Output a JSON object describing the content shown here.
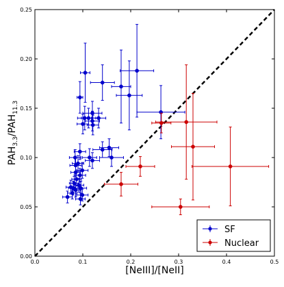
{
  "chart_data": {
    "type": "scatter",
    "xlabel": "[NeIII]/[NeII]",
    "ylabel_main": "PAH",
    "ylabel_sub1": "3.3",
    "ylabel_sep": "/PAH",
    "ylabel_sub2": "11.3",
    "xlim": [
      0,
      0.5
    ],
    "ylim": [
      0,
      0.25
    ],
    "xticks": [
      0.0,
      0.1,
      0.2,
      0.3,
      0.4,
      0.5
    ],
    "xtick_labels": [
      "0.0",
      "0.1",
      "0.2",
      "0.3",
      "0.4",
      "0.5"
    ],
    "yticks": [
      0.0,
      0.05,
      0.1,
      0.15,
      0.2,
      0.25
    ],
    "ytick_labels": [
      "0.00",
      "0.05",
      "0.10",
      "0.15",
      "0.20",
      "0.25"
    ],
    "reference_line": {
      "style": "dashed",
      "color": "#000000",
      "points": [
        [
          0,
          0
        ],
        [
          0.5,
          0.25
        ]
      ]
    },
    "legend": {
      "placement": "bottom-right"
    },
    "series": [
      {
        "name": "SF",
        "color": "#0000cc",
        "points": [
          {
            "x": 0.105,
            "y": 0.186,
            "xerr": 0.01,
            "yerr": 0.03
          },
          {
            "x": 0.213,
            "y": 0.188,
            "xerr": 0.035,
            "yerr": 0.047
          },
          {
            "x": 0.18,
            "y": 0.172,
            "xerr": 0.02,
            "yerr": 0.037
          },
          {
            "x": 0.197,
            "y": 0.163,
            "xerr": 0.027,
            "yerr": 0.035
          },
          {
            "x": 0.141,
            "y": 0.176,
            "xerr": 0.025,
            "yerr": 0.018
          },
          {
            "x": 0.094,
            "y": 0.161,
            "xerr": 0.006,
            "yerr": 0.016
          },
          {
            "x": 0.263,
            "y": 0.146,
            "xerr": 0.05,
            "yerr": 0.027
          },
          {
            "x": 0.12,
            "y": 0.145,
            "xerr": 0.02,
            "yerr": 0.012
          },
          {
            "x": 0.104,
            "y": 0.14,
            "xerr": 0.015,
            "yerr": 0.012
          },
          {
            "x": 0.112,
            "y": 0.14,
            "xerr": 0.015,
            "yerr": 0.01
          },
          {
            "x": 0.133,
            "y": 0.14,
            "xerr": 0.015,
            "yerr": 0.01
          },
          {
            "x": 0.12,
            "y": 0.137,
            "xerr": 0.015,
            "yerr": 0.01
          },
          {
            "x": 0.1,
            "y": 0.134,
            "xerr": 0.012,
            "yerr": 0.01
          },
          {
            "x": 0.121,
            "y": 0.133,
            "xerr": 0.012,
            "yerr": 0.01
          },
          {
            "x": 0.141,
            "y": 0.108,
            "xerr": 0.02,
            "yerr": 0.008
          },
          {
            "x": 0.155,
            "y": 0.11,
            "xerr": 0.02,
            "yerr": 0.009
          },
          {
            "x": 0.16,
            "y": 0.1,
            "xerr": 0.025,
            "yerr": 0.009
          },
          {
            "x": 0.114,
            "y": 0.1,
            "xerr": 0.015,
            "yerr": 0.009
          },
          {
            "x": 0.12,
            "y": 0.097,
            "xerr": 0.015,
            "yerr": 0.008
          },
          {
            "x": 0.094,
            "y": 0.106,
            "xerr": 0.012,
            "yerr": 0.008
          },
          {
            "x": 0.084,
            "y": 0.1,
            "xerr": 0.012,
            "yerr": 0.008
          },
          {
            "x": 0.09,
            "y": 0.094,
            "xerr": 0.012,
            "yerr": 0.008
          },
          {
            "x": 0.085,
            "y": 0.092,
            "xerr": 0.012,
            "yerr": 0.008
          },
          {
            "x": 0.099,
            "y": 0.087,
            "xerr": 0.012,
            "yerr": 0.008
          },
          {
            "x": 0.085,
            "y": 0.085,
            "xerr": 0.01,
            "yerr": 0.007
          },
          {
            "x": 0.094,
            "y": 0.082,
            "xerr": 0.012,
            "yerr": 0.007
          },
          {
            "x": 0.087,
            "y": 0.078,
            "xerr": 0.01,
            "yerr": 0.007
          },
          {
            "x": 0.082,
            "y": 0.074,
            "xerr": 0.01,
            "yerr": 0.007
          },
          {
            "x": 0.092,
            "y": 0.072,
            "xerr": 0.01,
            "yerr": 0.007
          },
          {
            "x": 0.075,
            "y": 0.07,
            "xerr": 0.01,
            "yerr": 0.007
          },
          {
            "x": 0.08,
            "y": 0.069,
            "xerr": 0.01,
            "yerr": 0.007
          },
          {
            "x": 0.096,
            "y": 0.069,
            "xerr": 0.012,
            "yerr": 0.007
          },
          {
            "x": 0.085,
            "y": 0.067,
            "xerr": 0.01,
            "yerr": 0.007
          },
          {
            "x": 0.078,
            "y": 0.064,
            "xerr": 0.01,
            "yerr": 0.006
          },
          {
            "x": 0.099,
            "y": 0.062,
            "xerr": 0.012,
            "yerr": 0.006
          },
          {
            "x": 0.068,
            "y": 0.06,
            "xerr": 0.01,
            "yerr": 0.006
          },
          {
            "x": 0.095,
            "y": 0.058,
            "xerr": 0.01,
            "yerr": 0.006
          }
        ]
      },
      {
        "name": "Nuclear",
        "color": "#cc0000",
        "points": [
          {
            "x": 0.316,
            "y": 0.136,
            "xerr": 0.064,
            "yerr": 0.058
          },
          {
            "x": 0.264,
            "y": 0.135,
            "xerr": 0.02,
            "yerr": 0.01
          },
          {
            "x": 0.33,
            "y": 0.111,
            "xerr": 0.045,
            "yerr": 0.054
          },
          {
            "x": 0.408,
            "y": 0.091,
            "xerr": 0.08,
            "yerr": 0.04
          },
          {
            "x": 0.22,
            "y": 0.091,
            "xerr": 0.03,
            "yerr": 0.01
          },
          {
            "x": 0.18,
            "y": 0.073,
            "xerr": 0.035,
            "yerr": 0.012
          },
          {
            "x": 0.304,
            "y": 0.05,
            "xerr": 0.06,
            "yerr": 0.008
          }
        ]
      }
    ]
  }
}
